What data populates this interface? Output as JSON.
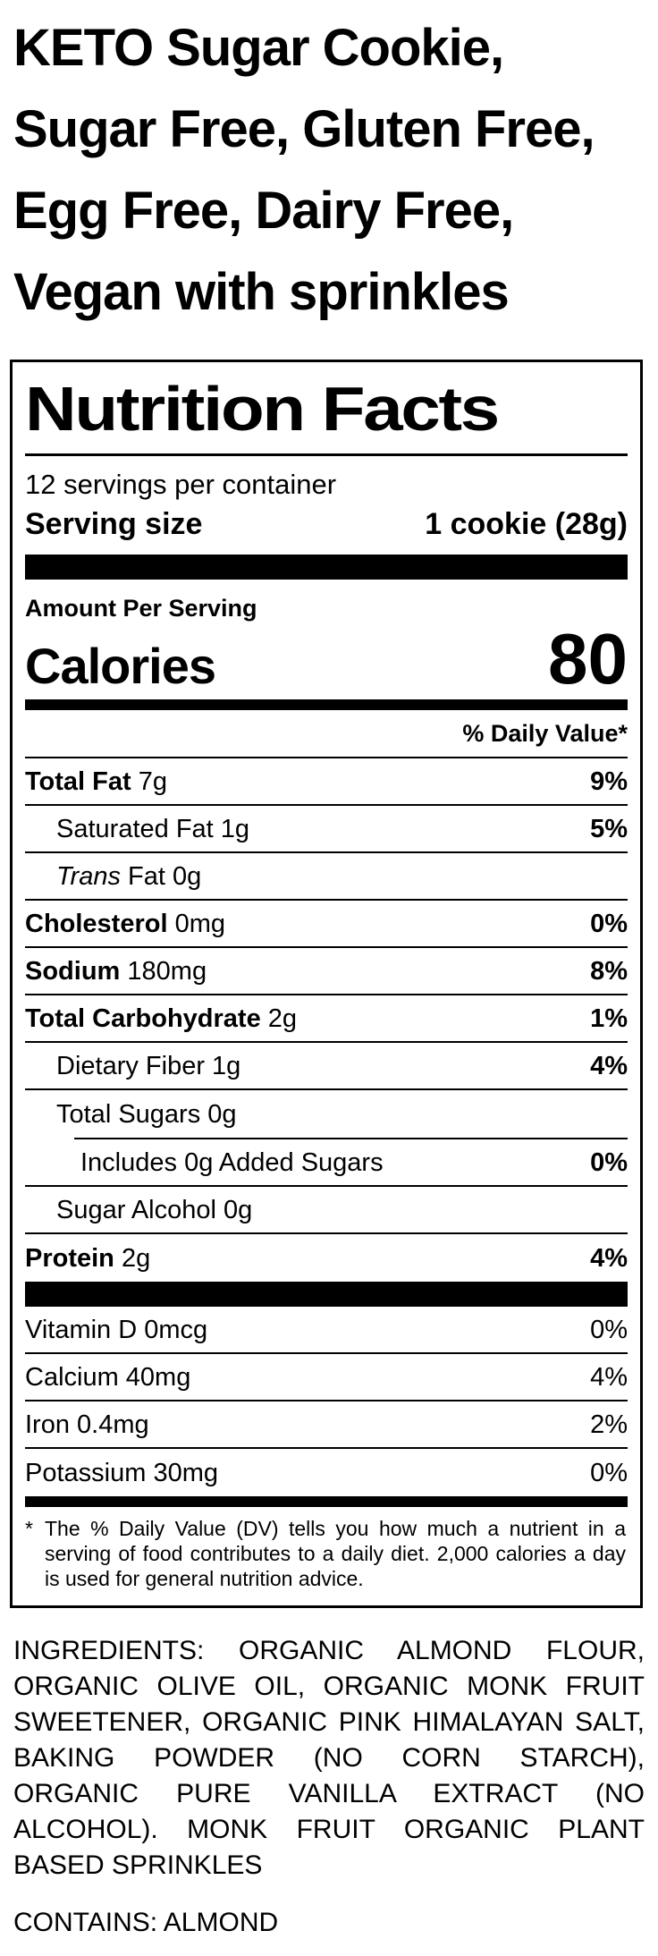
{
  "product": {
    "title": "KETO Sugar Cookie,\nSugar Free, Gluten Free,\nEgg Free, Dairy Free,\nVegan with sprinkles"
  },
  "nutrition_facts": {
    "title": "Nutrition Facts",
    "servings_per_container": "12 servings per container",
    "serving_size_label": "Serving size",
    "serving_size_value": "1 cookie (28g)",
    "amount_per_serving_label": "Amount Per Serving",
    "calories_label": "Calories",
    "calories_value": "80",
    "daily_value_header": "% Daily Value*",
    "rows": [
      {
        "b": "Total Fat",
        "r": " 7g",
        "dv": "9%"
      },
      {
        "r": "Saturated Fat 1g",
        "dv": "5%"
      },
      {
        "i": "Trans",
        "r": " Fat 0g",
        "dv": ""
      },
      {
        "b": "Cholesterol",
        "r": " 0mg",
        "dv": "0%"
      },
      {
        "b": "Sodium",
        "r": " 180mg",
        "dv": "8%"
      },
      {
        "b": "Total Carbohydrate",
        "r": " 2g",
        "dv": "1%"
      },
      {
        "r": "Dietary Fiber 1g",
        "dv": "4%"
      },
      {
        "r": "Total Sugars 0g",
        "dv": ""
      },
      {
        "r": "Includes 0g Added Sugars",
        "dv": "0%"
      },
      {
        "r": "Sugar Alcohol 0g",
        "dv": ""
      },
      {
        "b": "Protein",
        "r": " 2g",
        "dv": "4%"
      }
    ],
    "micronutrients": [
      {
        "r": "Vitamin D 0mcg",
        "dv": "0%"
      },
      {
        "r": "Calcium 40mg",
        "dv": "4%"
      },
      {
        "r": "Iron 0.4mg",
        "dv": "2%"
      },
      {
        "r": "Potassium 30mg",
        "dv": "0%"
      }
    ],
    "footnote_marker": "*",
    "footnote": "The % Daily Value (DV) tells you how much a nutrient in a serving of food contributes to a daily diet. 2,000 calories a day is used for general nutrition advice."
  },
  "ingredients_text": "INGREDIENTS: ORGANIC ALMOND FLOUR, ORGANIC OLIVE OIL, ORGANIC MONK FRUIT SWEETENER, ORGANIC PINK HIMALAYAN SALT, BAKING POWDER (NO CORN STARCH), ORGANIC PURE VANILLA EXTRACT (NO ALCOHOL). MONK FRUIT ORGANIC PLANT BASED SPRINKLES",
  "contains_text": "CONTAINS: ALMOND",
  "colors": {
    "ink": "#000000",
    "background": "#ffffff"
  }
}
